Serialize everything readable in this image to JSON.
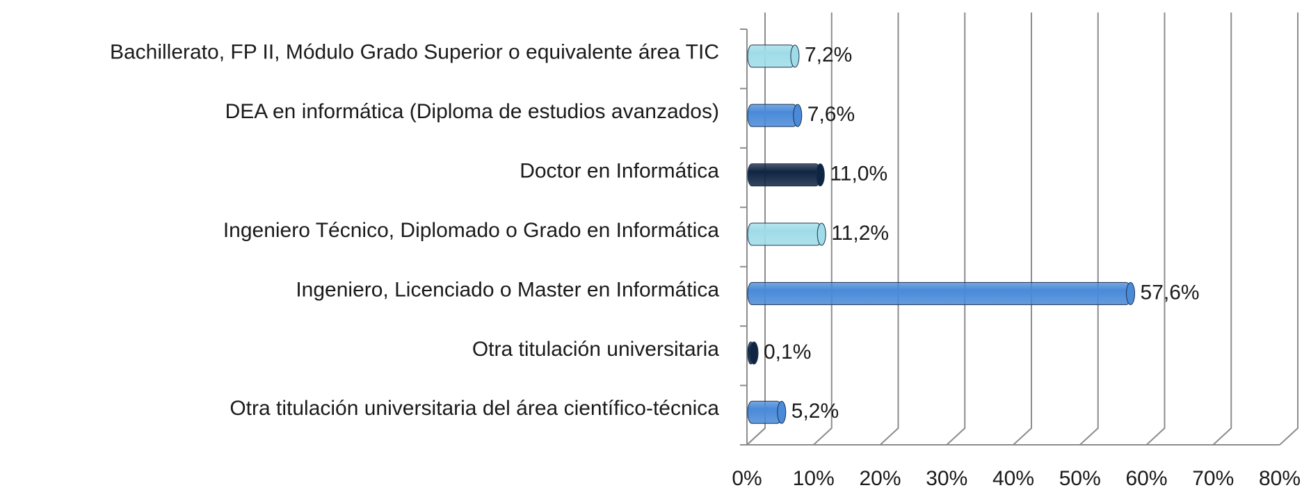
{
  "chart_data": {
    "type": "bar",
    "orientation": "horizontal",
    "categories": [
      "Bachillerato, FP II, Módulo Grado Superior o equivalente área TIC",
      "DEA en informática (Diploma de estudios avanzados)",
      "Doctor en Informática",
      "Ingeniero Técnico, Diplomado o Grado en Informática",
      "Ingeniero, Licenciado o Master en Informática",
      "Otra titulación universitaria",
      "Otra titulación universitaria del área científico-técnica"
    ],
    "values": [
      7.2,
      7.6,
      11.0,
      11.2,
      57.6,
      0.1,
      5.2
    ],
    "value_labels": [
      "7,2%",
      "7,6%",
      "11,0%",
      "11,2%",
      "57,6%",
      "0,1%",
      "5,2%"
    ],
    "colors": [
      "#9fdce8",
      "#4a8ad8",
      "#0f2542",
      "#9fdce8",
      "#4a8ad8",
      "#0f2542",
      "#4a8ad8"
    ],
    "xlim": [
      0,
      80
    ],
    "xticks": [
      {
        "value": 0,
        "label": "0%"
      },
      {
        "value": 10,
        "label": "10%"
      },
      {
        "value": 20,
        "label": "20%"
      },
      {
        "value": 30,
        "label": "30%"
      },
      {
        "value": 40,
        "label": "40%"
      },
      {
        "value": 50,
        "label": "50%"
      },
      {
        "value": 60,
        "label": "60%"
      },
      {
        "value": 70,
        "label": "70%"
      },
      {
        "value": 80,
        "label": "80%"
      }
    ],
    "grid": true
  }
}
